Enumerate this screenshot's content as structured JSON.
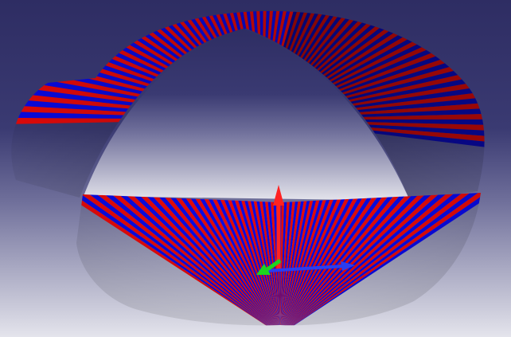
{
  "viewport": {
    "background_top_color": "#2e2d63",
    "background_bottom_color": "#e4e4ec"
  },
  "model": {
    "type": "mobius-strip",
    "stripe_color_a": "#e80a0a",
    "stripe_color_b": "#0a0ae6",
    "inner_shade_color_a": "#b00808",
    "inner_shade_color_b": "#080896"
  },
  "axes_triad": {
    "x_axis_color": "#2b3df0",
    "y_axis_color": "#1ed51e",
    "z_axis_color": "#ff2222"
  }
}
